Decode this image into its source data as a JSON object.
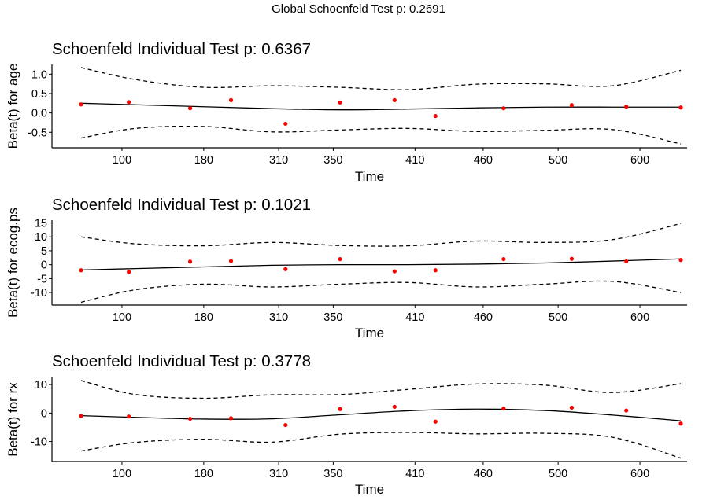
{
  "figure": {
    "title": "Global Schoenfeld Test p: 0.2691"
  },
  "chart_data": [
    {
      "type": "line",
      "title": "Schoenfeld Individual Test p: 0.6367",
      "xlabel": "Time",
      "ylabel": "Beta(t) for age",
      "x_ticks": [
        "100",
        "180",
        "310",
        "350",
        "410",
        "460",
        "500",
        "600"
      ],
      "x_tick_positions": [
        1.3,
        2.5,
        3.6,
        4.4,
        5.6,
        6.6,
        7.7,
        8.9
      ],
      "xlim": [
        0.5,
        9.5
      ],
      "ylim": [
        -0.9,
        1.25
      ],
      "y_ticks": [
        -0.5,
        0.0,
        0.5,
        1.0
      ],
      "y_tick_labels": [
        "-0.5",
        "0.0",
        "0.5",
        "1.0"
      ],
      "points": {
        "x": [
          0.7,
          1.4,
          2.3,
          2.9,
          3.7,
          4.5,
          5.3,
          5.9,
          6.9,
          7.9,
          8.7,
          9.5
        ],
        "y": [
          0.22,
          0.28,
          0.12,
          0.33,
          -0.28,
          0.27,
          0.33,
          -0.08,
          0.12,
          0.2,
          0.16,
          0.14
        ]
      },
      "series": [
        {
          "role": "fit",
          "x": [
            0.7,
            1.5,
            2.5,
            3.5,
            4.5,
            5.5,
            6.5,
            7.5,
            8.5,
            9.5
          ],
          "y": [
            0.25,
            0.21,
            0.16,
            0.11,
            0.08,
            0.1,
            0.13,
            0.15,
            0.15,
            0.15
          ]
        },
        {
          "role": "upper",
          "x": [
            0.7,
            1.5,
            2.5,
            3.5,
            4.5,
            5.5,
            6.5,
            7.5,
            8.5,
            9.5
          ],
          "y": [
            1.17,
            0.86,
            0.66,
            0.7,
            0.66,
            0.6,
            0.74,
            0.75,
            0.7,
            1.1
          ]
        },
        {
          "role": "lower",
          "x": [
            0.7,
            1.5,
            2.5,
            3.5,
            4.5,
            5.5,
            6.5,
            7.5,
            8.5,
            9.5
          ],
          "y": [
            -0.65,
            -0.4,
            -0.35,
            -0.49,
            -0.44,
            -0.4,
            -0.48,
            -0.45,
            -0.43,
            -0.8
          ]
        }
      ]
    },
    {
      "type": "line",
      "title": "Schoenfeld Individual Test p: 0.1021",
      "xlabel": "Time",
      "ylabel": "Beta(t) for ecog.ps",
      "x_ticks": [
        "100",
        "180",
        "310",
        "350",
        "410",
        "460",
        "500",
        "600"
      ],
      "x_tick_positions": [
        1.3,
        2.5,
        3.6,
        4.4,
        5.6,
        6.6,
        7.7,
        8.9
      ],
      "xlim": [
        0.5,
        9.5
      ],
      "ylim": [
        -14.5,
        16
      ],
      "y_ticks": [
        -10,
        -5,
        0,
        5,
        10,
        15
      ],
      "y_tick_labels": [
        "-10",
        "-5",
        "0",
        "5",
        "10",
        "15"
      ],
      "points": {
        "x": [
          0.7,
          1.4,
          2.3,
          2.9,
          3.7,
          4.5,
          5.3,
          5.9,
          6.9,
          7.9,
          8.7,
          9.5
        ],
        "y": [
          -2.0,
          -2.6,
          1.1,
          1.3,
          -1.6,
          2.0,
          -2.4,
          -2.0,
          2.0,
          2.1,
          1.2,
          1.7
        ]
      },
      "series": [
        {
          "role": "fit",
          "x": [
            0.7,
            1.5,
            2.5,
            3.5,
            4.5,
            5.5,
            6.5,
            7.5,
            8.5,
            9.5
          ],
          "y": [
            -1.9,
            -1.4,
            -0.8,
            -0.2,
            0.0,
            0.0,
            0.2,
            0.6,
            1.3,
            2.1
          ]
        },
        {
          "role": "upper",
          "x": [
            0.7,
            1.5,
            2.5,
            3.5,
            4.5,
            5.5,
            6.5,
            7.5,
            8.5,
            9.5
          ],
          "y": [
            10.0,
            7.5,
            6.8,
            8.0,
            6.9,
            6.8,
            8.5,
            8.0,
            9.0,
            14.8
          ]
        },
        {
          "role": "lower",
          "x": [
            0.7,
            1.5,
            2.5,
            3.5,
            4.5,
            5.5,
            6.5,
            7.5,
            8.5,
            9.5
          ],
          "y": [
            -13.5,
            -9.0,
            -7.0,
            -8.0,
            -7.0,
            -6.4,
            -8.0,
            -7.0,
            -6.0,
            -10.0
          ]
        }
      ]
    },
    {
      "type": "line",
      "title": "Schoenfeld Individual Test p: 0.3778",
      "xlabel": "Time",
      "ylabel": "Beta(t) for rx",
      "x_ticks": [
        "100",
        "180",
        "310",
        "350",
        "410",
        "460",
        "500",
        "600"
      ],
      "x_tick_positions": [
        1.3,
        2.5,
        3.6,
        4.4,
        5.6,
        6.6,
        7.7,
        8.9
      ],
      "xlim": [
        0.5,
        9.5
      ],
      "ylim": [
        -17,
        12.5
      ],
      "y_ticks": [
        -10,
        0,
        10
      ],
      "y_tick_labels": [
        "-10",
        "0",
        "10"
      ],
      "points": {
        "x": [
          0.7,
          1.4,
          2.3,
          2.9,
          3.7,
          4.5,
          5.3,
          5.9,
          6.9,
          7.9,
          8.7,
          9.5
        ],
        "y": [
          -1.0,
          -1.2,
          -2.0,
          -1.8,
          -4.2,
          1.4,
          2.2,
          -3.0,
          1.6,
          1.9,
          0.9,
          -3.7
        ]
      },
      "series": [
        {
          "role": "fit",
          "x": [
            0.7,
            1.5,
            2.5,
            3.5,
            4.5,
            5.5,
            6.5,
            7.5,
            8.5,
            9.5
          ],
          "y": [
            -0.9,
            -1.5,
            -2.1,
            -2.0,
            -0.6,
            0.8,
            1.4,
            0.9,
            -0.7,
            -2.7
          ]
        },
        {
          "role": "upper",
          "x": [
            0.7,
            1.5,
            2.5,
            3.5,
            4.5,
            5.5,
            6.5,
            7.5,
            8.5,
            9.5
          ],
          "y": [
            11.4,
            6.5,
            5.2,
            6.4,
            6.5,
            8.3,
            10.2,
            9.8,
            7.2,
            10.3
          ]
        },
        {
          "role": "lower",
          "x": [
            0.7,
            1.5,
            2.5,
            3.5,
            4.5,
            5.5,
            6.5,
            7.5,
            8.5,
            9.5
          ],
          "y": [
            -13.3,
            -10.3,
            -9.2,
            -10.2,
            -7.4,
            -6.8,
            -7.3,
            -7.1,
            -8.5,
            -15.8
          ]
        }
      ]
    }
  ],
  "style": {
    "point_color": "#ff0000",
    "line_color": "#000000"
  }
}
